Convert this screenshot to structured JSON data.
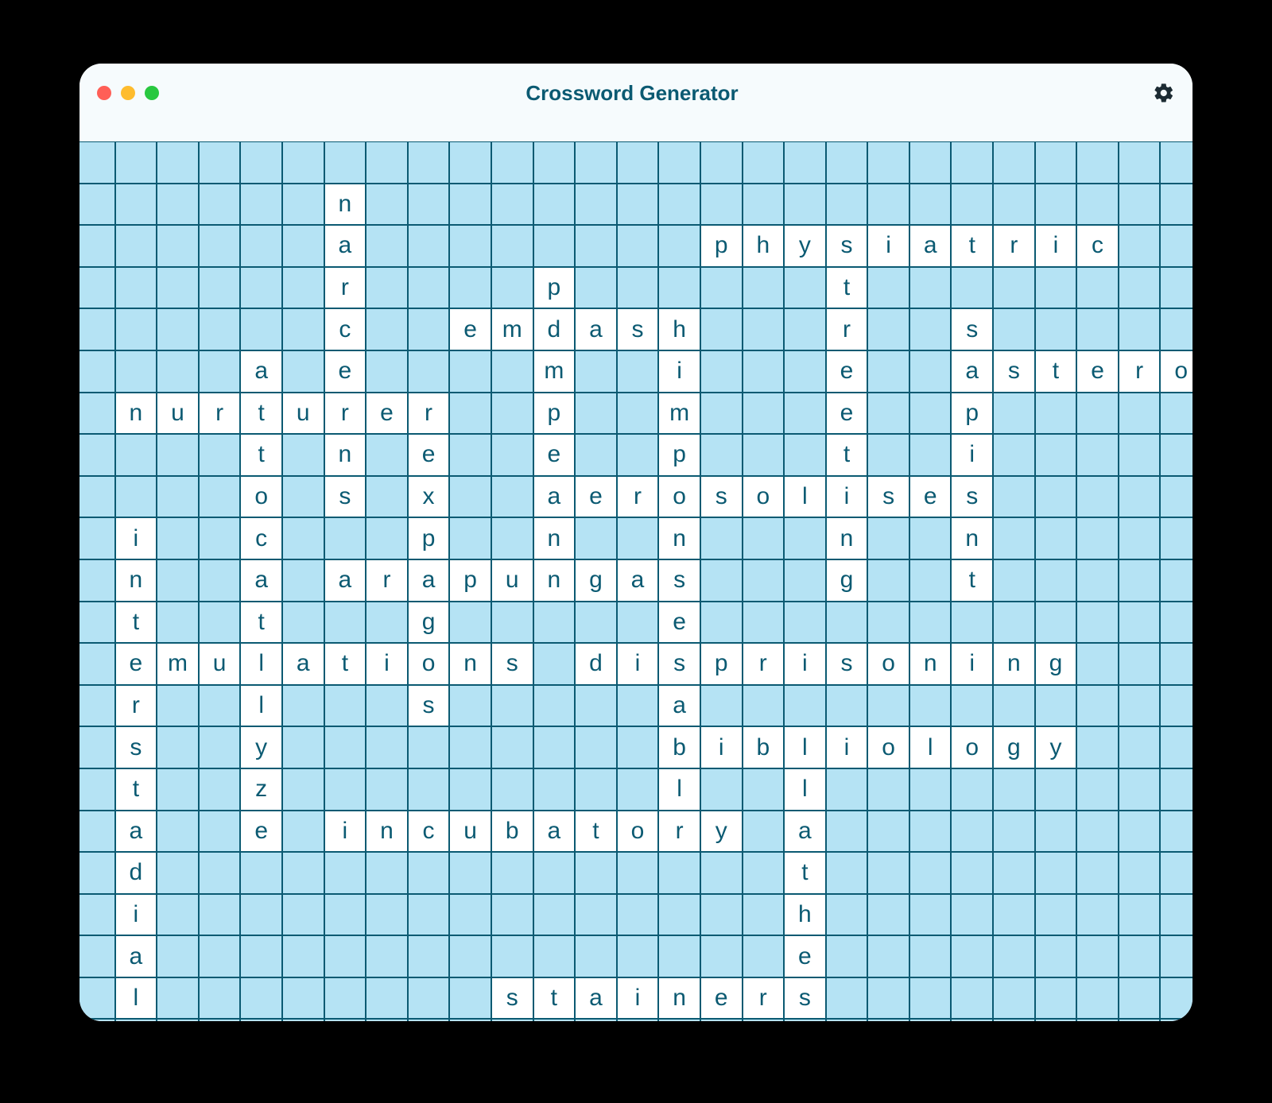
{
  "title": "Crossword Generator",
  "grid": {
    "rows": 23,
    "cols": 27,
    "cell_size": 52.6,
    "colors": {
      "blocked_bg": "#b5e3f4",
      "open_bg": "#ffffff",
      "border": "#0b5a72",
      "text": "#0b5a72"
    },
    "cells": [
      "...........................",
      "......n....................",
      "......a........physiatric..",
      "......r....p......t........",
      "......c..emdash...r..s.....",
      "....a.e....m..i...e..astero",
      ".nurturer..p..m...e..p.....",
      "....t.n.e..e..p...t..i.....",
      "....o.s.x..aerosolises.....",
      ".i..c...p..n..n...n..n.....",
      ".n..a.arapungas...g..t.....",
      ".t..t...g.....e............",
      ".emulations.disprisoning...",
      ".r..l...s.....a............",
      ".s..y.........bibliology...",
      ".t..z.........l..l.........",
      ".a..e.incubatory.a.........",
      ".d...............t.........",
      ".i...............h.........",
      ".a...............e.........",
      ".l........stainers.........",
      "...........................",
      "..........................."
    ]
  },
  "window": {
    "bg": "#f6fbfd",
    "border_radius": 28
  },
  "icons": {
    "settings": "gear-icon"
  }
}
